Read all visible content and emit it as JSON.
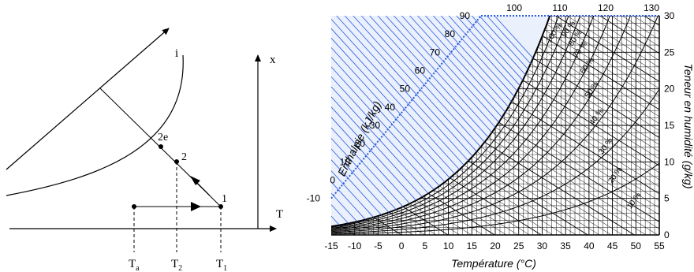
{
  "left_diagram": {
    "labels": {
      "enthalpy_axis": "i",
      "humidity_axis": "x",
      "temperature_axis": "T",
      "point_2e": "2e",
      "point_2": "2",
      "point_1": "1"
    },
    "tick_labels": [
      {
        "main": "T",
        "sub": "a"
      },
      {
        "main": "T",
        "sub": "2"
      },
      {
        "main": "T",
        "sub": "1"
      }
    ]
  },
  "psychro_chart": {
    "x_label": "Température (°C)",
    "y_label_right": "Teneur en humidité (g/kg)",
    "enthalpy_label": "Enthalpie (kJ/kg)",
    "temperature_ticks": [
      "-15",
      "-10",
      "-5",
      "0",
      "5",
      "10",
      "15",
      "20",
      "25",
      "30",
      "35",
      "40",
      "45",
      "50",
      "55"
    ],
    "humidity_ticks": [
      "0",
      "5",
      "10",
      "15",
      "20",
      "25",
      "30"
    ],
    "enthalpy_ticks_left": [
      "-10",
      "0",
      "10",
      "20",
      "30",
      "40",
      "50",
      "60",
      "70",
      "80",
      "90"
    ],
    "enthalpy_ticks_top": [
      "100",
      "110",
      "120",
      "130"
    ],
    "rh_labels": [
      "100 %",
      "90 %",
      "80 %",
      "70 %",
      "60 %",
      "50 %",
      "40 %",
      "30 %",
      "20 %",
      "10 %"
    ]
  },
  "chart_data": {
    "type": "psychrometric",
    "xlabel": "Température (°C)",
    "ylabel": "Teneur en humidité (g/kg)",
    "xlim": [
      -15,
      55
    ],
    "ylim": [
      0,
      30
    ],
    "enthalpy_range": [
      -10,
      130
    ],
    "rh_curves_percent": [
      100,
      90,
      80,
      70,
      60,
      50,
      40,
      30,
      20,
      10
    ],
    "grid": true,
    "colors": {
      "enthalpy_lines": "#2b5be0",
      "grid": "#000000",
      "saturation": "#000000"
    }
  }
}
